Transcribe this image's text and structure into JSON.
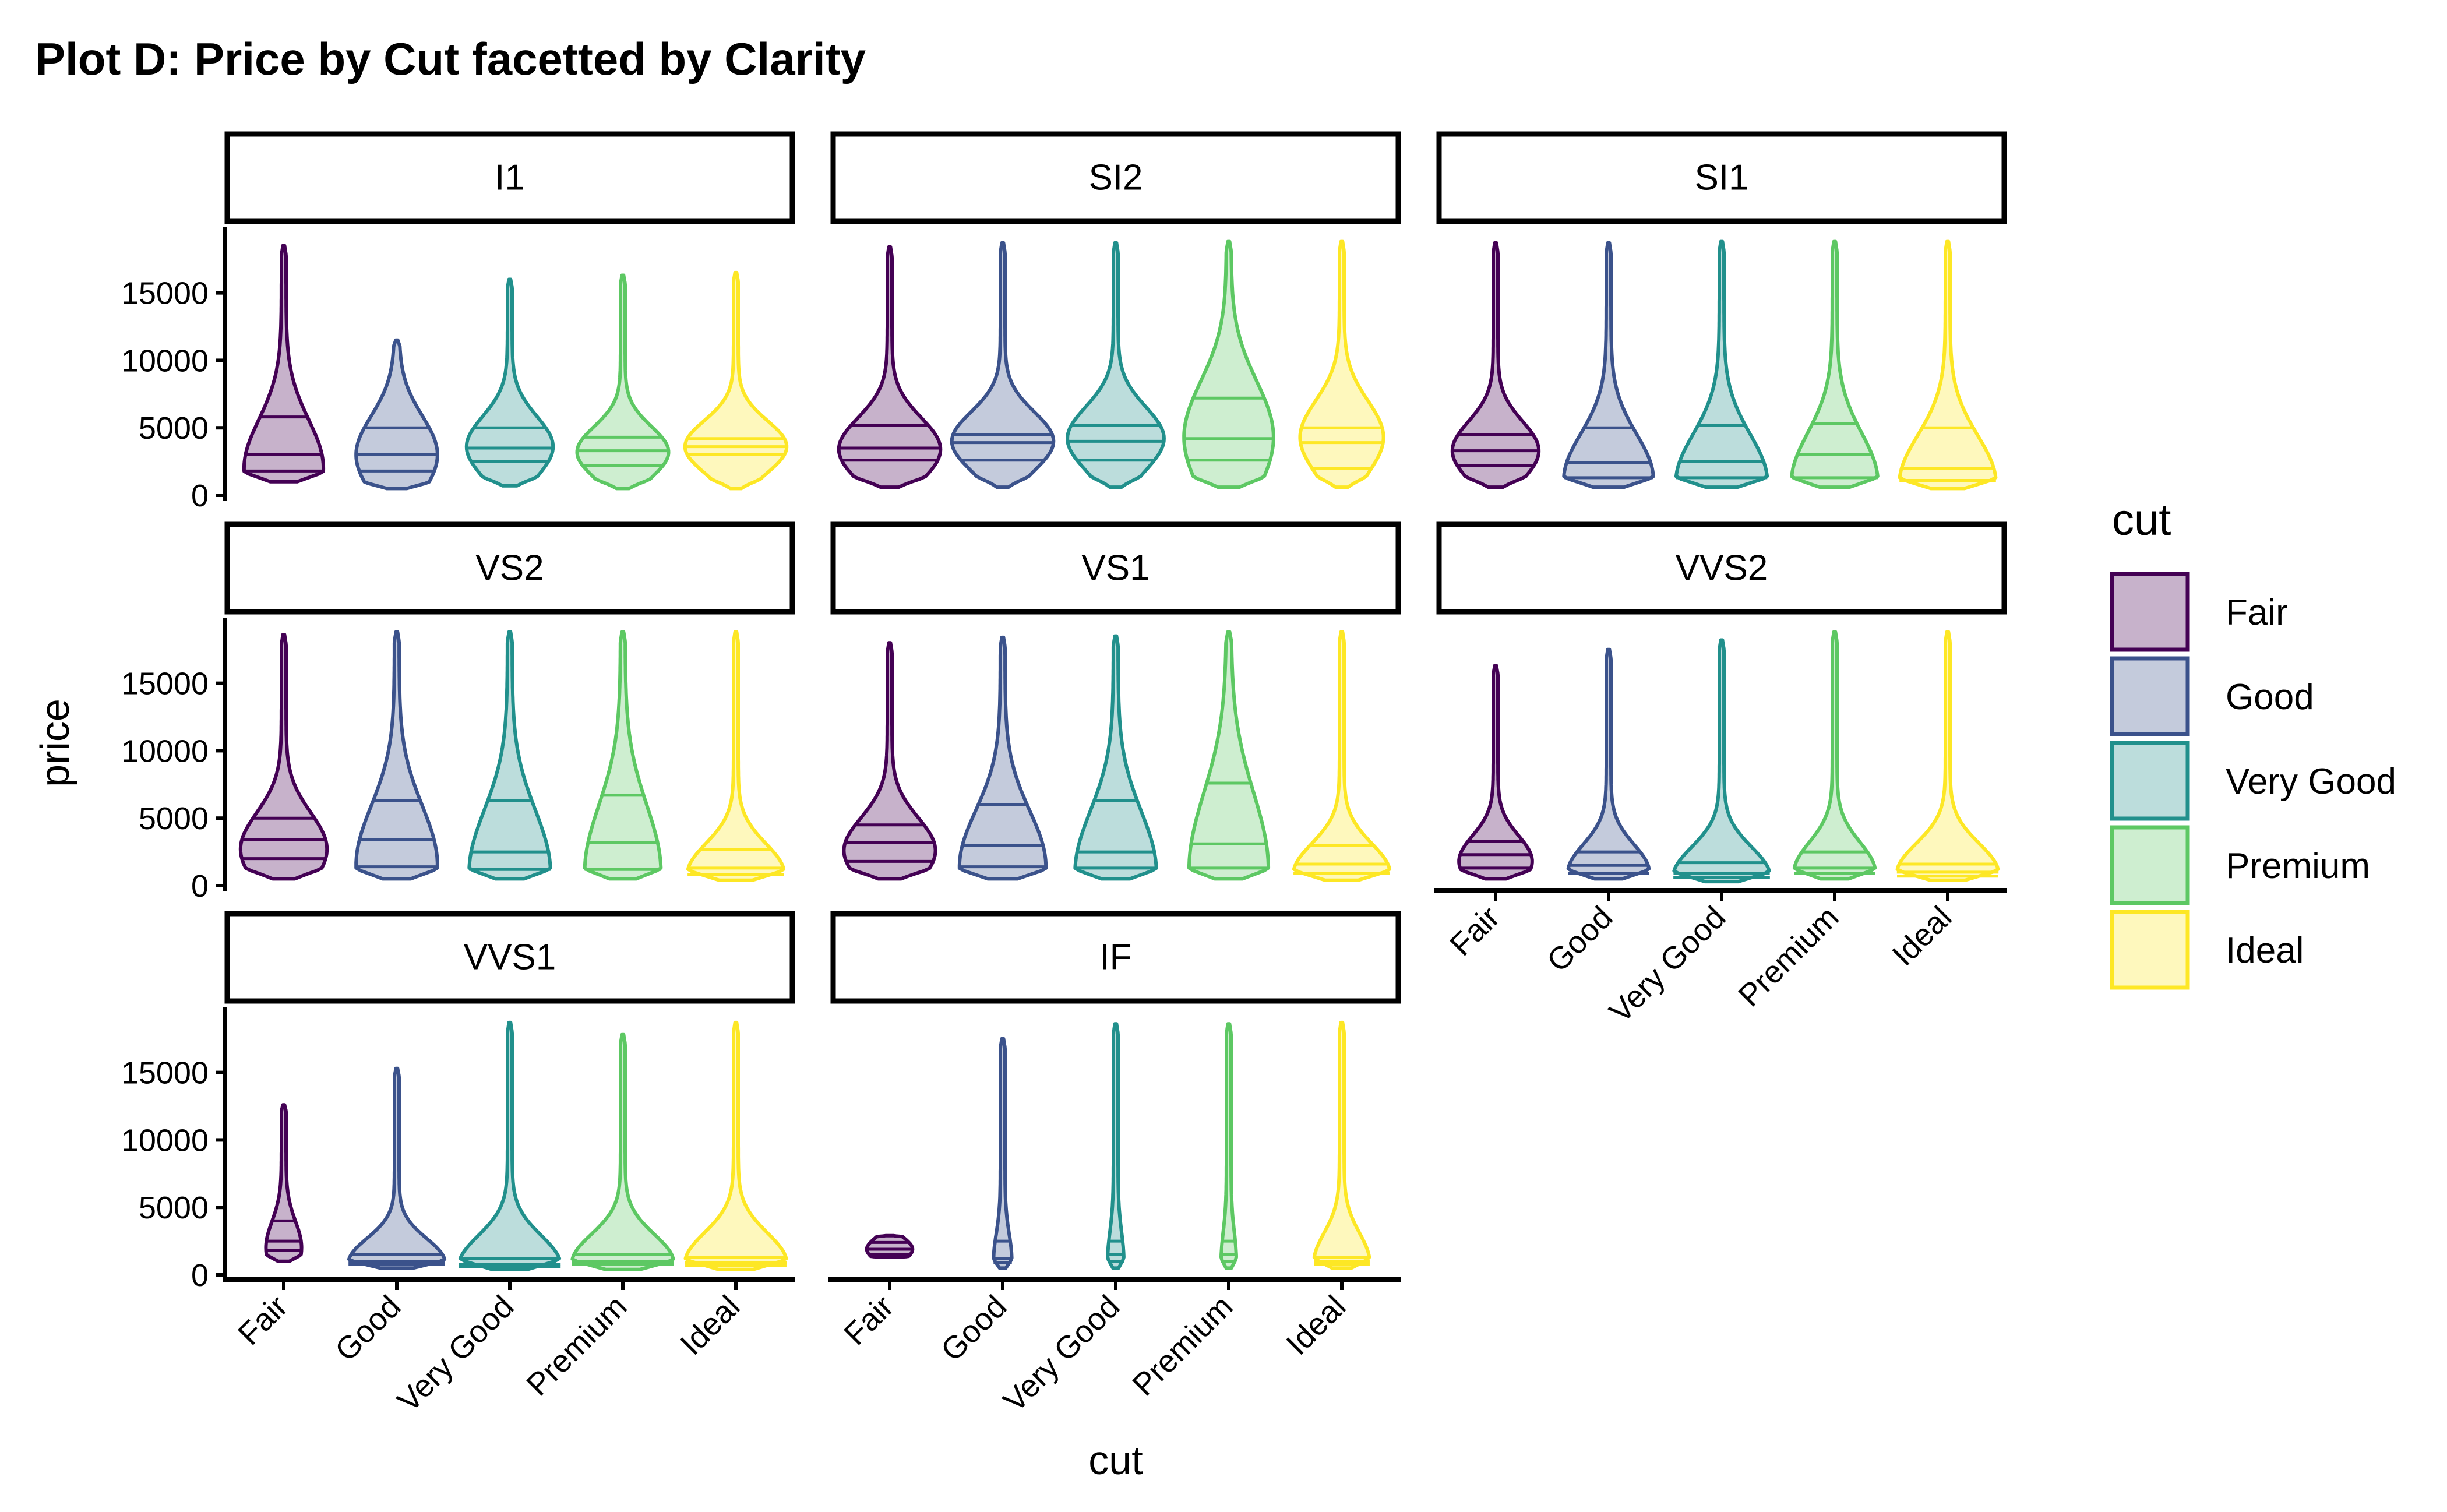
{
  "chart_data": {
    "type": "violin",
    "title": "Plot D: Price by Cut facetted by Clarity",
    "xlabel": "cut",
    "ylabel": "price",
    "ylim": [
      0,
      19000
    ],
    "y_ticks": [
      0,
      5000,
      10000,
      15000
    ],
    "categories": [
      "Fair",
      "Good",
      "Very Good",
      "Premium",
      "Ideal"
    ],
    "legend": {
      "title": "cut",
      "position": "right",
      "entries": [
        "Fair",
        "Good",
        "Very Good",
        "Premium",
        "Ideal"
      ]
    },
    "colors": {
      "Fair": "#440154",
      "Good": "#3b528b",
      "Very Good": "#21908c",
      "Premium": "#5dc863",
      "Ideal": "#fde725"
    },
    "fill_opacity": 0.3,
    "grid": false,
    "draw_quantiles": [
      0.25,
      0.5,
      0.75
    ],
    "facets": [
      {
        "label": "I1",
        "violins": [
          {
            "cut": "Fair",
            "min": 1000,
            "max": 18500,
            "q1": 1800,
            "median": 3000,
            "q3": 5800,
            "mode": 2000,
            "width": 0.78
          },
          {
            "cut": "Good",
            "min": 500,
            "max": 11500,
            "q1": 1800,
            "median": 3000,
            "q3": 5000,
            "mode": 3000,
            "width": 0.8
          },
          {
            "cut": "Very Good",
            "min": 700,
            "max": 16000,
            "q1": 2500,
            "median": 3500,
            "q3": 5000,
            "mode": 3600,
            "width": 0.85
          },
          {
            "cut": "Premium",
            "min": 500,
            "max": 16300,
            "q1": 2200,
            "median": 3300,
            "q3": 4300,
            "mode": 3200,
            "width": 0.9
          },
          {
            "cut": "Ideal",
            "min": 500,
            "max": 16500,
            "q1": 3000,
            "median": 3600,
            "q3": 4200,
            "mode": 3600,
            "width": 1.0
          }
        ]
      },
      {
        "label": "SI2",
        "violins": [
          {
            "cut": "Fair",
            "min": 600,
            "max": 18400,
            "q1": 2600,
            "median": 3500,
            "q3": 5200,
            "mode": 3400,
            "width": 1.0
          },
          {
            "cut": "Good",
            "min": 600,
            "max": 18700,
            "q1": 2600,
            "median": 3900,
            "q3": 4500,
            "mode": 4000,
            "width": 1.0
          },
          {
            "cut": "Very Good",
            "min": 600,
            "max": 18700,
            "q1": 2600,
            "median": 4000,
            "q3": 5200,
            "mode": 4200,
            "width": 0.95
          },
          {
            "cut": "Premium",
            "min": 600,
            "max": 18800,
            "q1": 2600,
            "median": 4200,
            "q3": 7200,
            "mode": 4300,
            "width": 0.88
          },
          {
            "cut": "Ideal",
            "min": 600,
            "max": 18800,
            "q1": 2000,
            "median": 3900,
            "q3": 5000,
            "mode": 4300,
            "width": 0.82
          }
        ]
      },
      {
        "label": "SI1",
        "violins": [
          {
            "cut": "Fair",
            "min": 600,
            "max": 18700,
            "q1": 2200,
            "median": 3300,
            "q3": 4500,
            "mode": 3300,
            "width": 0.85
          },
          {
            "cut": "Good",
            "min": 600,
            "max": 18700,
            "q1": 1300,
            "median": 2400,
            "q3": 5000,
            "mode": 1200,
            "width": 0.88
          },
          {
            "cut": "Very Good",
            "min": 600,
            "max": 18800,
            "q1": 1300,
            "median": 2500,
            "q3": 5200,
            "mode": 1000,
            "width": 0.9
          },
          {
            "cut": "Premium",
            "min": 600,
            "max": 18800,
            "q1": 1300,
            "median": 3000,
            "q3": 5300,
            "mode": 1000,
            "width": 0.85
          },
          {
            "cut": "Ideal",
            "min": 500,
            "max": 18800,
            "q1": 1100,
            "median": 2000,
            "q3": 5000,
            "mode": 900,
            "width": 0.95
          }
        ]
      },
      {
        "label": "VS2",
        "violins": [
          {
            "cut": "Fair",
            "min": 500,
            "max": 18600,
            "q1": 2000,
            "median": 3400,
            "q3": 5000,
            "mode": 2700,
            "width": 0.85
          },
          {
            "cut": "Good",
            "min": 500,
            "max": 18800,
            "q1": 1400,
            "median": 3400,
            "q3": 6300,
            "mode": 1500,
            "width": 0.8
          },
          {
            "cut": "Very Good",
            "min": 500,
            "max": 18800,
            "q1": 1200,
            "median": 2500,
            "q3": 6300,
            "mode": 1000,
            "width": 0.8
          },
          {
            "cut": "Premium",
            "min": 500,
            "max": 18800,
            "q1": 1200,
            "median": 3200,
            "q3": 6700,
            "mode": 1000,
            "width": 0.75
          },
          {
            "cut": "Ideal",
            "min": 400,
            "max": 18800,
            "q1": 800,
            "median": 1300,
            "q3": 2700,
            "mode": 900,
            "width": 0.95
          }
        ]
      },
      {
        "label": "VS1",
        "violins": [
          {
            "cut": "Fair",
            "min": 500,
            "max": 18000,
            "q1": 1800,
            "median": 3200,
            "q3": 4500,
            "mode": 2600,
            "width": 0.9
          },
          {
            "cut": "Good",
            "min": 500,
            "max": 18400,
            "q1": 1400,
            "median": 3000,
            "q3": 6000,
            "mode": 1400,
            "width": 0.85
          },
          {
            "cut": "Very Good",
            "min": 500,
            "max": 18500,
            "q1": 1300,
            "median": 2500,
            "q3": 6300,
            "mode": 1000,
            "width": 0.8
          },
          {
            "cut": "Premium",
            "min": 500,
            "max": 18800,
            "q1": 1300,
            "median": 3100,
            "q3": 7600,
            "mode": 1200,
            "width": 0.78
          },
          {
            "cut": "Ideal",
            "min": 400,
            "max": 18800,
            "q1": 900,
            "median": 1600,
            "q3": 3000,
            "mode": 900,
            "width": 0.95
          }
        ]
      },
      {
        "label": "VVS2",
        "violins": [
          {
            "cut": "Fair",
            "min": 500,
            "max": 16300,
            "q1": 1300,
            "median": 2300,
            "q3": 3300,
            "mode": 1800,
            "width": 0.72
          },
          {
            "cut": "Good",
            "min": 500,
            "max": 17500,
            "q1": 900,
            "median": 1500,
            "q3": 2500,
            "mode": 1000,
            "width": 0.8
          },
          {
            "cut": "Very Good",
            "min": 300,
            "max": 18200,
            "q1": 600,
            "median": 900,
            "q3": 1700,
            "mode": 700,
            "width": 0.95
          },
          {
            "cut": "Premium",
            "min": 500,
            "max": 18800,
            "q1": 900,
            "median": 1300,
            "q3": 2500,
            "mode": 1000,
            "width": 0.8
          },
          {
            "cut": "Ideal",
            "min": 400,
            "max": 18800,
            "q1": 700,
            "median": 1000,
            "q3": 1600,
            "mode": 900,
            "width": 1.0
          }
        ]
      },
      {
        "label": "VVS1",
        "violins": [
          {
            "cut": "Fair",
            "min": 1000,
            "max": 12600,
            "q1": 1800,
            "median": 2500,
            "q3": 4000,
            "mode": 2000,
            "width": 0.35
          },
          {
            "cut": "Good",
            "min": 500,
            "max": 15300,
            "q1": 800,
            "median": 1000,
            "q3": 1500,
            "mode": 900,
            "width": 0.95
          },
          {
            "cut": "Very Good",
            "min": 400,
            "max": 18700,
            "q1": 600,
            "median": 800,
            "q3": 1200,
            "mode": 700,
            "width": 1.0
          },
          {
            "cut": "Premium",
            "min": 400,
            "max": 17800,
            "q1": 800,
            "median": 1000,
            "q3": 1500,
            "mode": 900,
            "width": 1.0
          },
          {
            "cut": "Ideal",
            "min": 400,
            "max": 18700,
            "q1": 700,
            "median": 900,
            "q3": 1300,
            "mode": 900,
            "width": 1.0
          }
        ]
      },
      {
        "label": "IF",
        "violins": [
          {
            "cut": "Fair",
            "min": 1300,
            "max": 2900,
            "q1": 1500,
            "median": 1900,
            "q3": 2400,
            "mode": 1900,
            "width": 0.45
          },
          {
            "cut": "Good",
            "min": 500,
            "max": 17500,
            "q1": 900,
            "median": 1200,
            "q3": 2500,
            "mode": 1000,
            "width": 0.18
          },
          {
            "cut": "Very Good",
            "min": 500,
            "max": 18600,
            "q1": 1000,
            "median": 1500,
            "q3": 2500,
            "mode": 1000,
            "width": 0.16
          },
          {
            "cut": "Premium",
            "min": 500,
            "max": 18600,
            "q1": 1000,
            "median": 1500,
            "q3": 2500,
            "mode": 1000,
            "width": 0.15
          },
          {
            "cut": "Ideal",
            "min": 500,
            "max": 18700,
            "q1": 800,
            "median": 1000,
            "q3": 1300,
            "mode": 900,
            "width": 0.55
          }
        ]
      }
    ]
  }
}
